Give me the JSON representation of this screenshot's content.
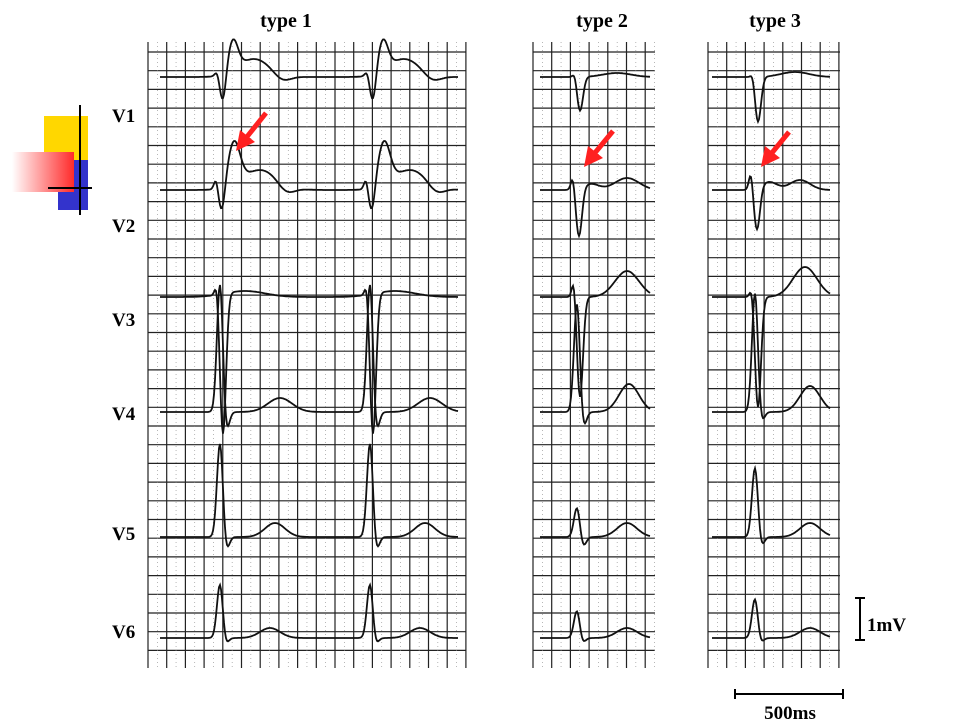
{
  "panels": [
    {
      "title": "type 1"
    },
    {
      "title": "type 2"
    },
    {
      "title": "type 3"
    }
  ],
  "leads": [
    "V1",
    "V2",
    "V3",
    "V4",
    "V5",
    "V6"
  ],
  "scale": {
    "voltage": "1mV",
    "time": "500ms"
  }
}
